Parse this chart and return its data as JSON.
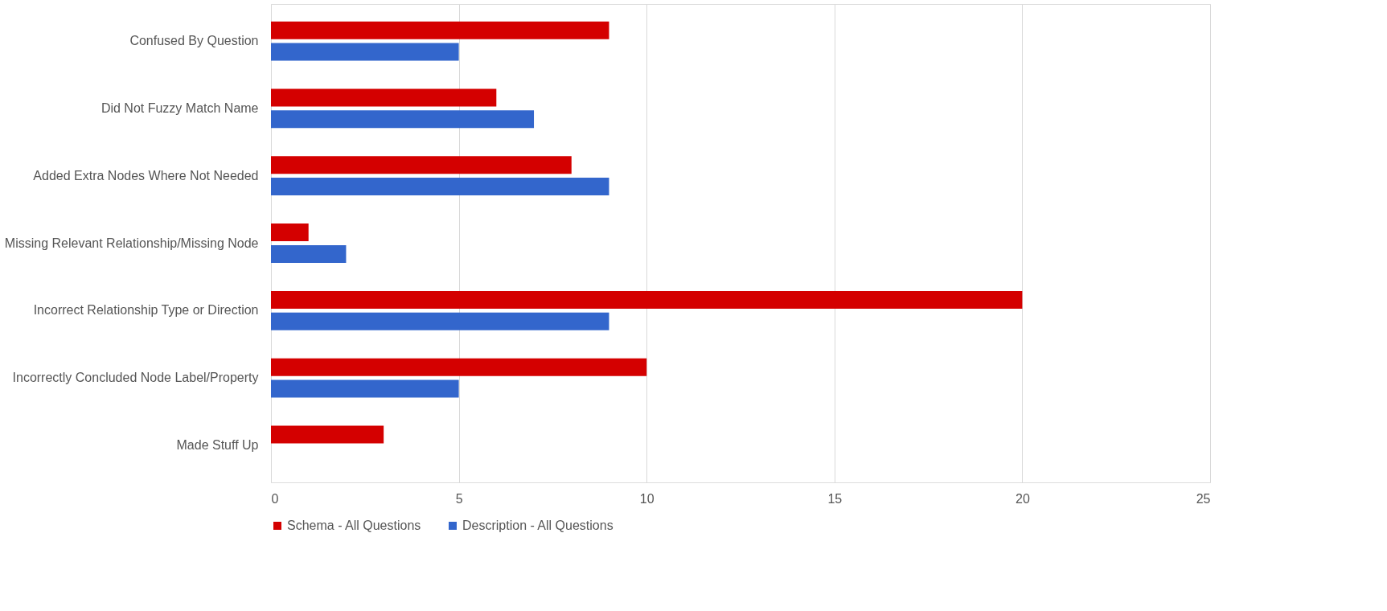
{
  "chart_data": {
    "type": "bar",
    "orientation": "horizontal",
    "categories": [
      "Confused By Question",
      "Did Not Fuzzy Match Name",
      "Added Extra Nodes Where Not Needed",
      "Missing Relevant Relationship/Missing Node",
      "Incorrect Relationship Type or Direction",
      "Incorrectly Concluded Node Label/Property",
      "Made Stuff Up"
    ],
    "series": [
      {
        "name": "Schema - All Questions",
        "color": "#d40000",
        "values": [
          9,
          6,
          8,
          1,
          20,
          10,
          3
        ]
      },
      {
        "name": "Description - All Questions",
        "color": "#3366cc",
        "values": [
          5,
          7,
          9,
          2,
          9,
          5,
          null
        ]
      }
    ],
    "xlim": [
      0,
      25
    ],
    "xticks": [
      0,
      5,
      10,
      15,
      20,
      25
    ],
    "grid": "x",
    "legend": "bottom"
  }
}
